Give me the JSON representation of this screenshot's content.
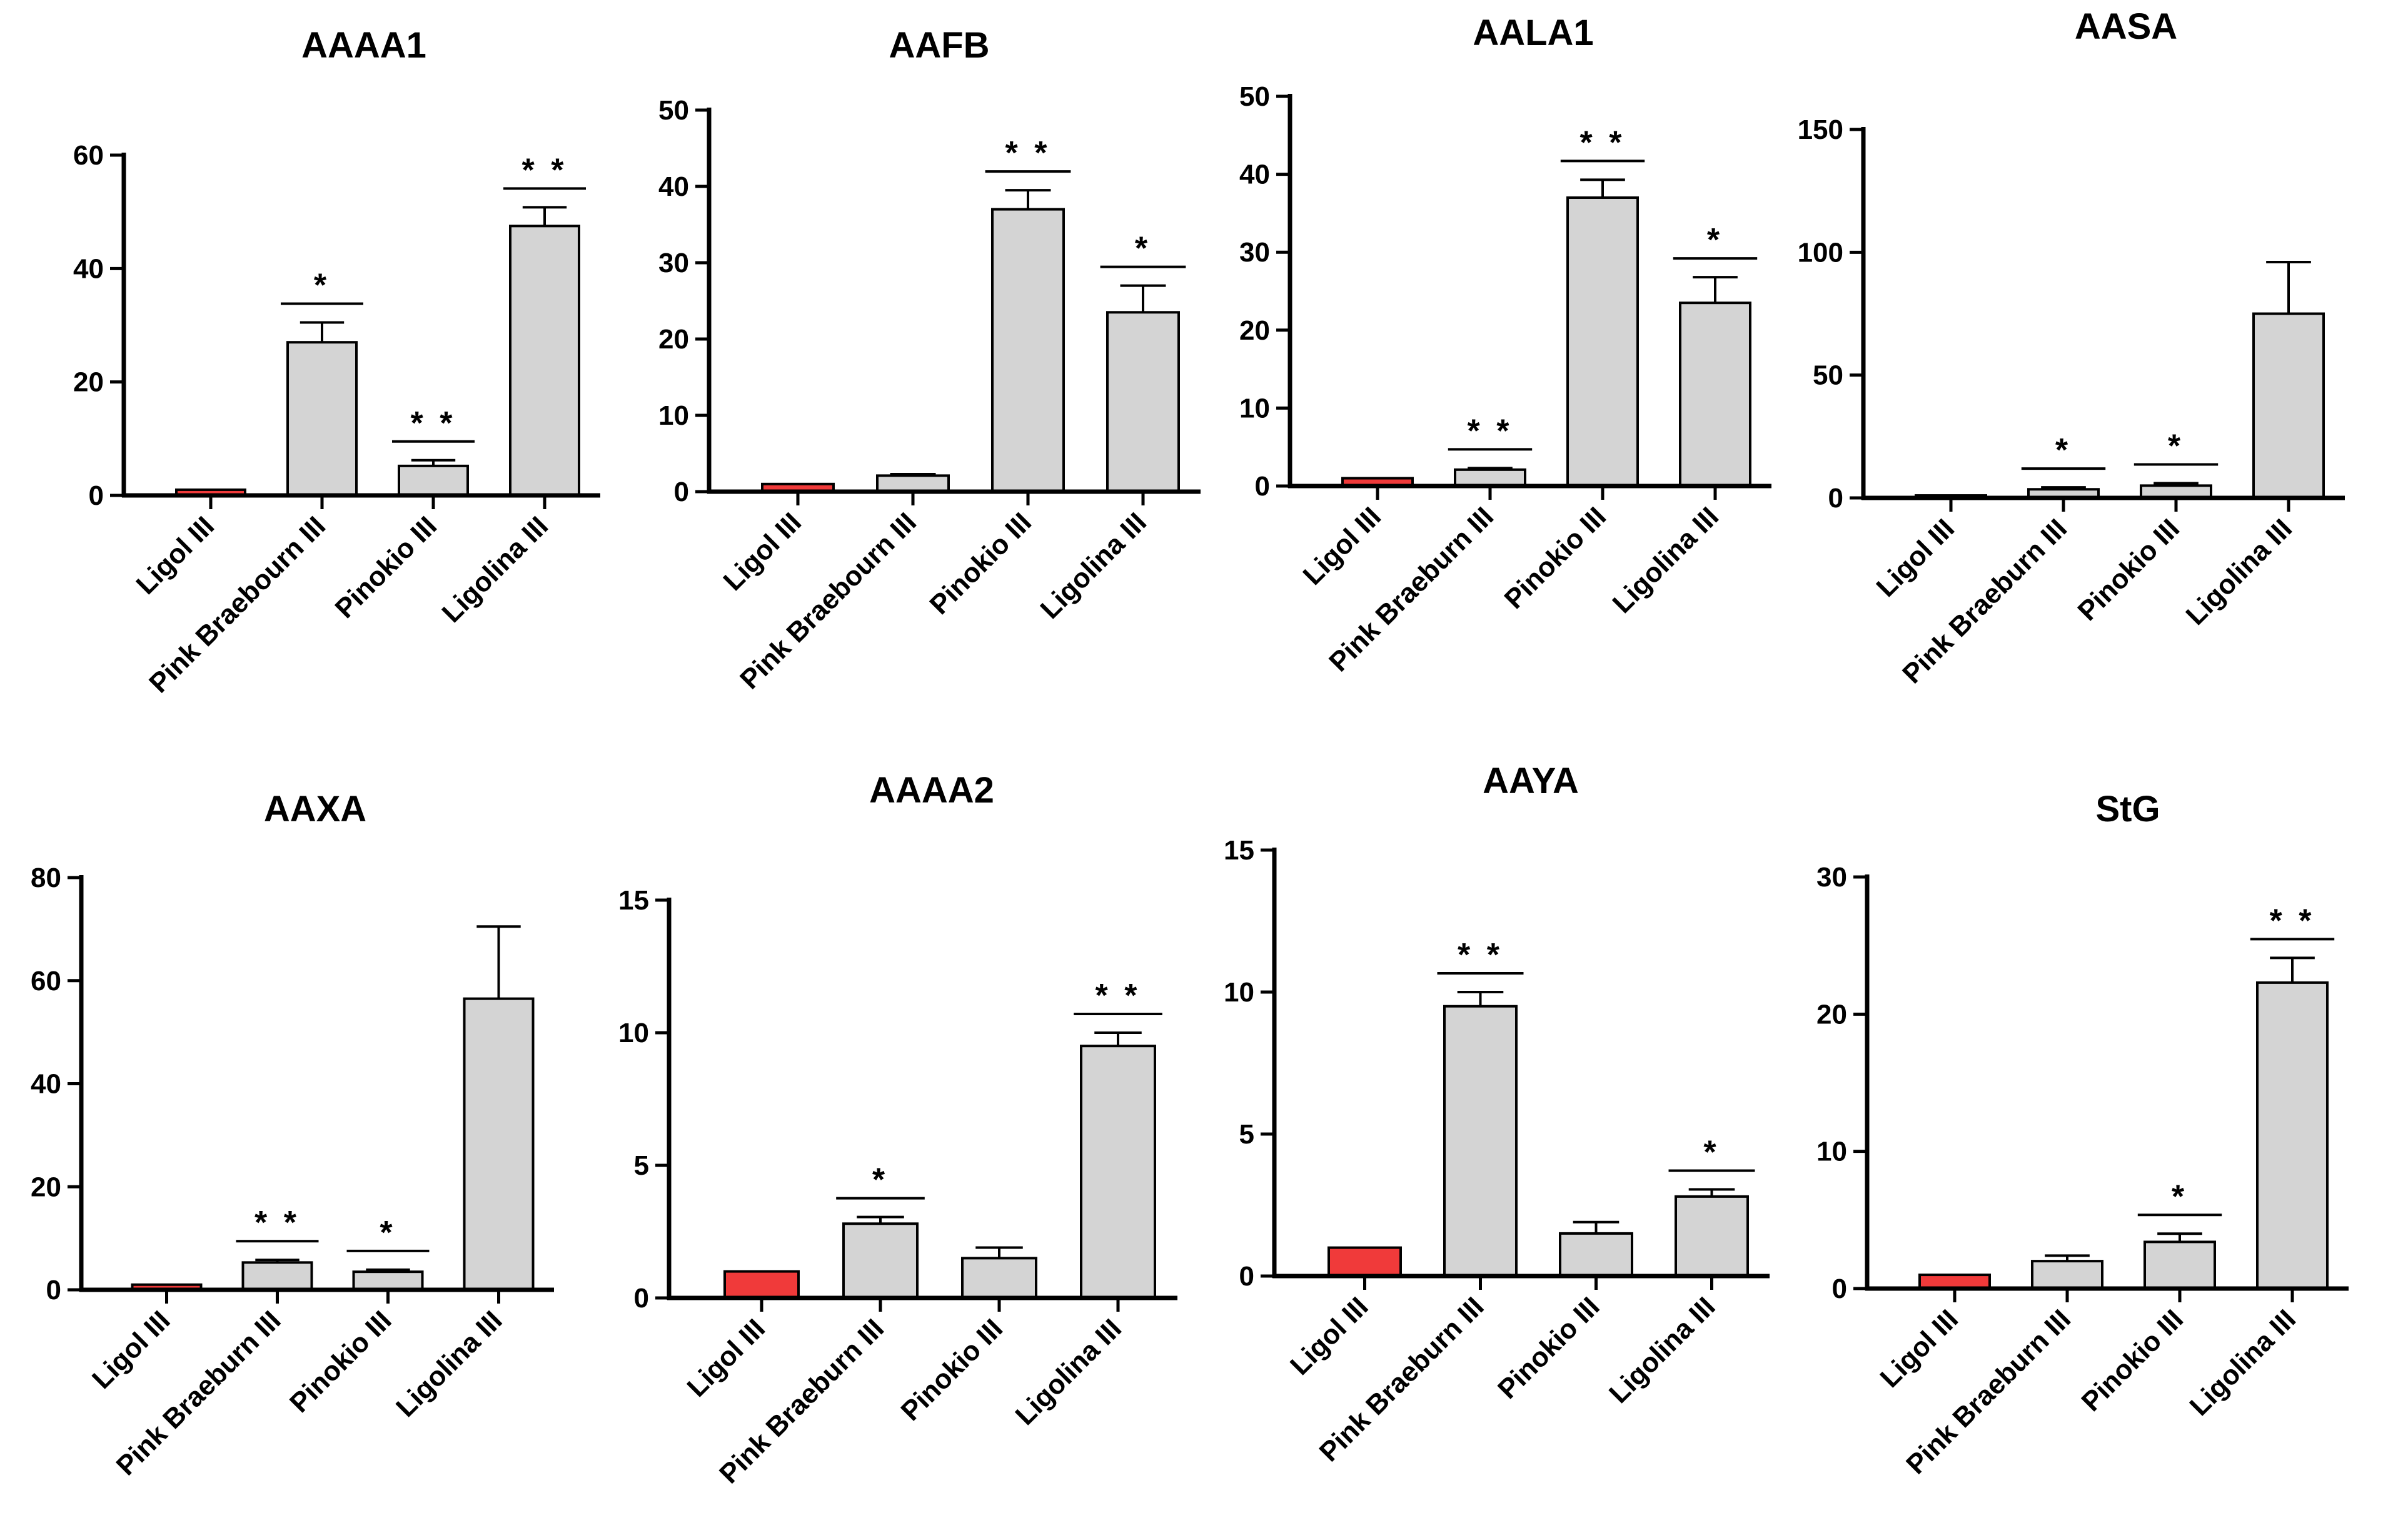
{
  "colors": {
    "control": "#f03a3a",
    "sample": "#d4d4d4",
    "stroke": "#000000"
  },
  "chart_data": [
    {
      "type": "bar",
      "title": "AAAA1",
      "categories": [
        "Ligol III",
        "Pink Braebourn III",
        "Pinokio III",
        "Ligolina III"
      ],
      "values": [
        1,
        27,
        5.2,
        47.5
      ],
      "errors": [
        0,
        3.5,
        1,
        3.3
      ],
      "significance": [
        "",
        "*",
        "**",
        "**"
      ],
      "ylim": [
        0,
        60
      ],
      "yticks": [
        0,
        20,
        40,
        60
      ]
    },
    {
      "type": "bar",
      "title": "AAFB",
      "categories": [
        "Ligol III",
        "Pink Braebourn III",
        "Pinokio III",
        "Ligolina III"
      ],
      "values": [
        1,
        2.1,
        37,
        23.5
      ],
      "errors": [
        0,
        0.2,
        2.5,
        3.5
      ],
      "significance": [
        "",
        "",
        "**",
        "*"
      ],
      "ylim": [
        0,
        50
      ],
      "yticks": [
        0,
        10,
        20,
        30,
        40,
        50
      ]
    },
    {
      "type": "bar",
      "title": "AALA1",
      "categories": [
        "Ligol III",
        "Pink Braeburn III",
        "Pinokio III",
        "Ligolina III"
      ],
      "values": [
        1,
        2.1,
        37,
        23.5
      ],
      "errors": [
        0,
        0.2,
        2.3,
        3.3
      ],
      "significance": [
        "",
        "**",
        "**",
        "*"
      ],
      "ylim": [
        0,
        50
      ],
      "yticks": [
        0,
        10,
        20,
        30,
        40,
        50
      ]
    },
    {
      "type": "bar",
      "title": "AASA",
      "categories": [
        "Ligol III",
        "Pink Braeburn III",
        "Pinokio III",
        "Ligolina III"
      ],
      "values": [
        1,
        3.5,
        5,
        75
      ],
      "errors": [
        0,
        0.8,
        1,
        21
      ],
      "significance": [
        "",
        "*",
        "*",
        ""
      ],
      "ylim": [
        0,
        150
      ],
      "yticks": [
        0,
        50,
        100,
        150
      ]
    },
    {
      "type": "bar",
      "title": "AAXA",
      "categories": [
        "Ligol III",
        "Pink Braeburn III",
        "Pinokio III",
        "Ligolina III"
      ],
      "values": [
        1,
        5.3,
        3.5,
        56.5
      ],
      "errors": [
        0,
        0.5,
        0.4,
        14
      ],
      "significance": [
        "",
        "**",
        "*",
        ""
      ],
      "ylim": [
        0,
        80
      ],
      "yticks": [
        0,
        20,
        40,
        60,
        80
      ]
    },
    {
      "type": "bar",
      "title": "AAAA2",
      "categories": [
        "Ligol III",
        "Pink Braeburn III",
        "Pinokio III",
        "Ligolina III"
      ],
      "values": [
        1,
        2.8,
        1.5,
        9.5
      ],
      "errors": [
        0,
        0.25,
        0.4,
        0.5
      ],
      "significance": [
        "",
        "*",
        "",
        "**"
      ],
      "ylim": [
        0,
        15
      ],
      "yticks": [
        0,
        5,
        10,
        15
      ]
    },
    {
      "type": "bar",
      "title": "AAYA",
      "categories": [
        "Ligol III",
        "Pink Braeburn III",
        "Pinokio III",
        "Ligolina III"
      ],
      "values": [
        1,
        9.5,
        1.5,
        2.8
      ],
      "errors": [
        0,
        0.5,
        0.4,
        0.25
      ],
      "significance": [
        "",
        "**",
        "",
        "*"
      ],
      "ylim": [
        0,
        15
      ],
      "yticks": [
        0,
        5,
        10,
        15
      ]
    },
    {
      "type": "bar",
      "title": "StG",
      "categories": [
        "Ligol III",
        "Pink Braeburn III",
        "Pinokio III",
        "Ligolina III"
      ],
      "values": [
        1,
        2,
        3.4,
        22.3
      ],
      "errors": [
        0,
        0.4,
        0.6,
        1.8
      ],
      "significance": [
        "",
        "",
        "*",
        "**"
      ],
      "ylim": [
        0,
        30
      ],
      "yticks": [
        0,
        10,
        20,
        30
      ]
    }
  ]
}
